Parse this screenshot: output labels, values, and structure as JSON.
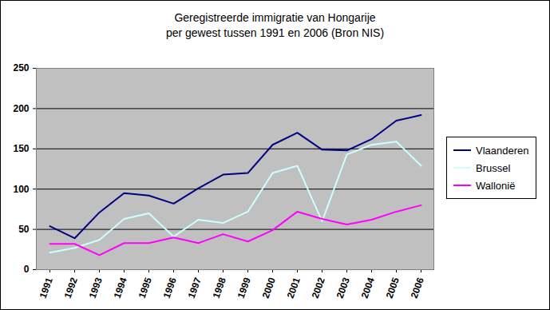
{
  "chart_data": {
    "type": "line",
    "title": "Geregistreerde immigratie van Hongarije",
    "subtitle": "per gewest tussen 1991 en 2006 (Bron NIS)",
    "categories": [
      "1991",
      "1992",
      "1993",
      "1994",
      "1995",
      "1996",
      "1997",
      "1998",
      "1999",
      "2000",
      "2001",
      "2002",
      "2003",
      "2004",
      "2005",
      "2006"
    ],
    "series": [
      {
        "name": "Vlaanderen",
        "color": "#000080",
        "values": [
          54,
          39,
          71,
          95,
          92,
          82,
          101,
          118,
          120,
          155,
          170,
          149,
          148,
          162,
          185,
          192
        ]
      },
      {
        "name": "Brussel",
        "color": "#ccffff",
        "values": [
          21,
          27,
          37,
          63,
          70,
          41,
          62,
          58,
          72,
          120,
          129,
          60,
          143,
          155,
          159,
          129
        ]
      },
      {
        "name": "Wallonië",
        "color": "#ff00ff",
        "values": [
          32,
          32,
          18,
          33,
          33,
          40,
          33,
          44,
          35,
          49,
          72,
          63,
          56,
          62,
          72,
          80
        ]
      }
    ],
    "ylim": [
      0,
      250
    ],
    "yticks": [
      0,
      50,
      100,
      150,
      200,
      250
    ],
    "grid": true,
    "legend": "right"
  }
}
